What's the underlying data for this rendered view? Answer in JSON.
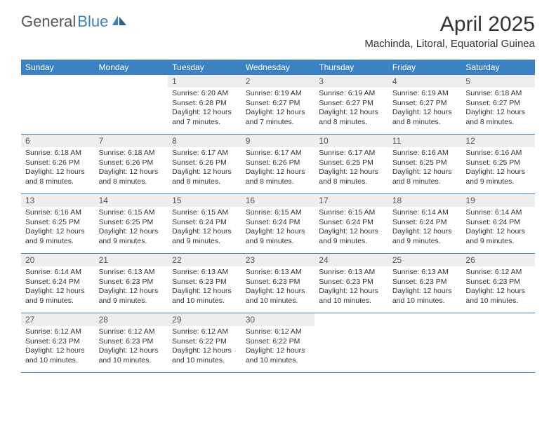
{
  "brand": {
    "part1": "General",
    "part2": "Blue"
  },
  "title": "April 2025",
  "location": "Machinda, Litoral, Equatorial Guinea",
  "colors": {
    "header_bg": "#3b82c4",
    "daynum_bg": "#eeeeee",
    "text": "#333333",
    "logo_gray": "#555555",
    "logo_blue": "#3b82c4",
    "border": "#3b82c4"
  },
  "weekdays": [
    "Sunday",
    "Monday",
    "Tuesday",
    "Wednesday",
    "Thursday",
    "Friday",
    "Saturday"
  ],
  "weeks": [
    [
      {
        "empty": true
      },
      {
        "empty": true
      },
      {
        "num": "1",
        "sunrise": "Sunrise: 6:20 AM",
        "sunset": "Sunset: 6:28 PM",
        "daylight": "Daylight: 12 hours and 7 minutes."
      },
      {
        "num": "2",
        "sunrise": "Sunrise: 6:19 AM",
        "sunset": "Sunset: 6:27 PM",
        "daylight": "Daylight: 12 hours and 7 minutes."
      },
      {
        "num": "3",
        "sunrise": "Sunrise: 6:19 AM",
        "sunset": "Sunset: 6:27 PM",
        "daylight": "Daylight: 12 hours and 8 minutes."
      },
      {
        "num": "4",
        "sunrise": "Sunrise: 6:19 AM",
        "sunset": "Sunset: 6:27 PM",
        "daylight": "Daylight: 12 hours and 8 minutes."
      },
      {
        "num": "5",
        "sunrise": "Sunrise: 6:18 AM",
        "sunset": "Sunset: 6:27 PM",
        "daylight": "Daylight: 12 hours and 8 minutes."
      }
    ],
    [
      {
        "num": "6",
        "sunrise": "Sunrise: 6:18 AM",
        "sunset": "Sunset: 6:26 PM",
        "daylight": "Daylight: 12 hours and 8 minutes."
      },
      {
        "num": "7",
        "sunrise": "Sunrise: 6:18 AM",
        "sunset": "Sunset: 6:26 PM",
        "daylight": "Daylight: 12 hours and 8 minutes."
      },
      {
        "num": "8",
        "sunrise": "Sunrise: 6:17 AM",
        "sunset": "Sunset: 6:26 PM",
        "daylight": "Daylight: 12 hours and 8 minutes."
      },
      {
        "num": "9",
        "sunrise": "Sunrise: 6:17 AM",
        "sunset": "Sunset: 6:26 PM",
        "daylight": "Daylight: 12 hours and 8 minutes."
      },
      {
        "num": "10",
        "sunrise": "Sunrise: 6:17 AM",
        "sunset": "Sunset: 6:25 PM",
        "daylight": "Daylight: 12 hours and 8 minutes."
      },
      {
        "num": "11",
        "sunrise": "Sunrise: 6:16 AM",
        "sunset": "Sunset: 6:25 PM",
        "daylight": "Daylight: 12 hours and 8 minutes."
      },
      {
        "num": "12",
        "sunrise": "Sunrise: 6:16 AM",
        "sunset": "Sunset: 6:25 PM",
        "daylight": "Daylight: 12 hours and 9 minutes."
      }
    ],
    [
      {
        "num": "13",
        "sunrise": "Sunrise: 6:16 AM",
        "sunset": "Sunset: 6:25 PM",
        "daylight": "Daylight: 12 hours and 9 minutes."
      },
      {
        "num": "14",
        "sunrise": "Sunrise: 6:15 AM",
        "sunset": "Sunset: 6:25 PM",
        "daylight": "Daylight: 12 hours and 9 minutes."
      },
      {
        "num": "15",
        "sunrise": "Sunrise: 6:15 AM",
        "sunset": "Sunset: 6:24 PM",
        "daylight": "Daylight: 12 hours and 9 minutes."
      },
      {
        "num": "16",
        "sunrise": "Sunrise: 6:15 AM",
        "sunset": "Sunset: 6:24 PM",
        "daylight": "Daylight: 12 hours and 9 minutes."
      },
      {
        "num": "17",
        "sunrise": "Sunrise: 6:15 AM",
        "sunset": "Sunset: 6:24 PM",
        "daylight": "Daylight: 12 hours and 9 minutes."
      },
      {
        "num": "18",
        "sunrise": "Sunrise: 6:14 AM",
        "sunset": "Sunset: 6:24 PM",
        "daylight": "Daylight: 12 hours and 9 minutes."
      },
      {
        "num": "19",
        "sunrise": "Sunrise: 6:14 AM",
        "sunset": "Sunset: 6:24 PM",
        "daylight": "Daylight: 12 hours and 9 minutes."
      }
    ],
    [
      {
        "num": "20",
        "sunrise": "Sunrise: 6:14 AM",
        "sunset": "Sunset: 6:24 PM",
        "daylight": "Daylight: 12 hours and 9 minutes."
      },
      {
        "num": "21",
        "sunrise": "Sunrise: 6:13 AM",
        "sunset": "Sunset: 6:23 PM",
        "daylight": "Daylight: 12 hours and 9 minutes."
      },
      {
        "num": "22",
        "sunrise": "Sunrise: 6:13 AM",
        "sunset": "Sunset: 6:23 PM",
        "daylight": "Daylight: 12 hours and 10 minutes."
      },
      {
        "num": "23",
        "sunrise": "Sunrise: 6:13 AM",
        "sunset": "Sunset: 6:23 PM",
        "daylight": "Daylight: 12 hours and 10 minutes."
      },
      {
        "num": "24",
        "sunrise": "Sunrise: 6:13 AM",
        "sunset": "Sunset: 6:23 PM",
        "daylight": "Daylight: 12 hours and 10 minutes."
      },
      {
        "num": "25",
        "sunrise": "Sunrise: 6:13 AM",
        "sunset": "Sunset: 6:23 PM",
        "daylight": "Daylight: 12 hours and 10 minutes."
      },
      {
        "num": "26",
        "sunrise": "Sunrise: 6:12 AM",
        "sunset": "Sunset: 6:23 PM",
        "daylight": "Daylight: 12 hours and 10 minutes."
      }
    ],
    [
      {
        "num": "27",
        "sunrise": "Sunrise: 6:12 AM",
        "sunset": "Sunset: 6:23 PM",
        "daylight": "Daylight: 12 hours and 10 minutes."
      },
      {
        "num": "28",
        "sunrise": "Sunrise: 6:12 AM",
        "sunset": "Sunset: 6:23 PM",
        "daylight": "Daylight: 12 hours and 10 minutes."
      },
      {
        "num": "29",
        "sunrise": "Sunrise: 6:12 AM",
        "sunset": "Sunset: 6:22 PM",
        "daylight": "Daylight: 12 hours and 10 minutes."
      },
      {
        "num": "30",
        "sunrise": "Sunrise: 6:12 AM",
        "sunset": "Sunset: 6:22 PM",
        "daylight": "Daylight: 12 hours and 10 minutes."
      },
      {
        "empty": true
      },
      {
        "empty": true
      },
      {
        "empty": true
      }
    ]
  ]
}
